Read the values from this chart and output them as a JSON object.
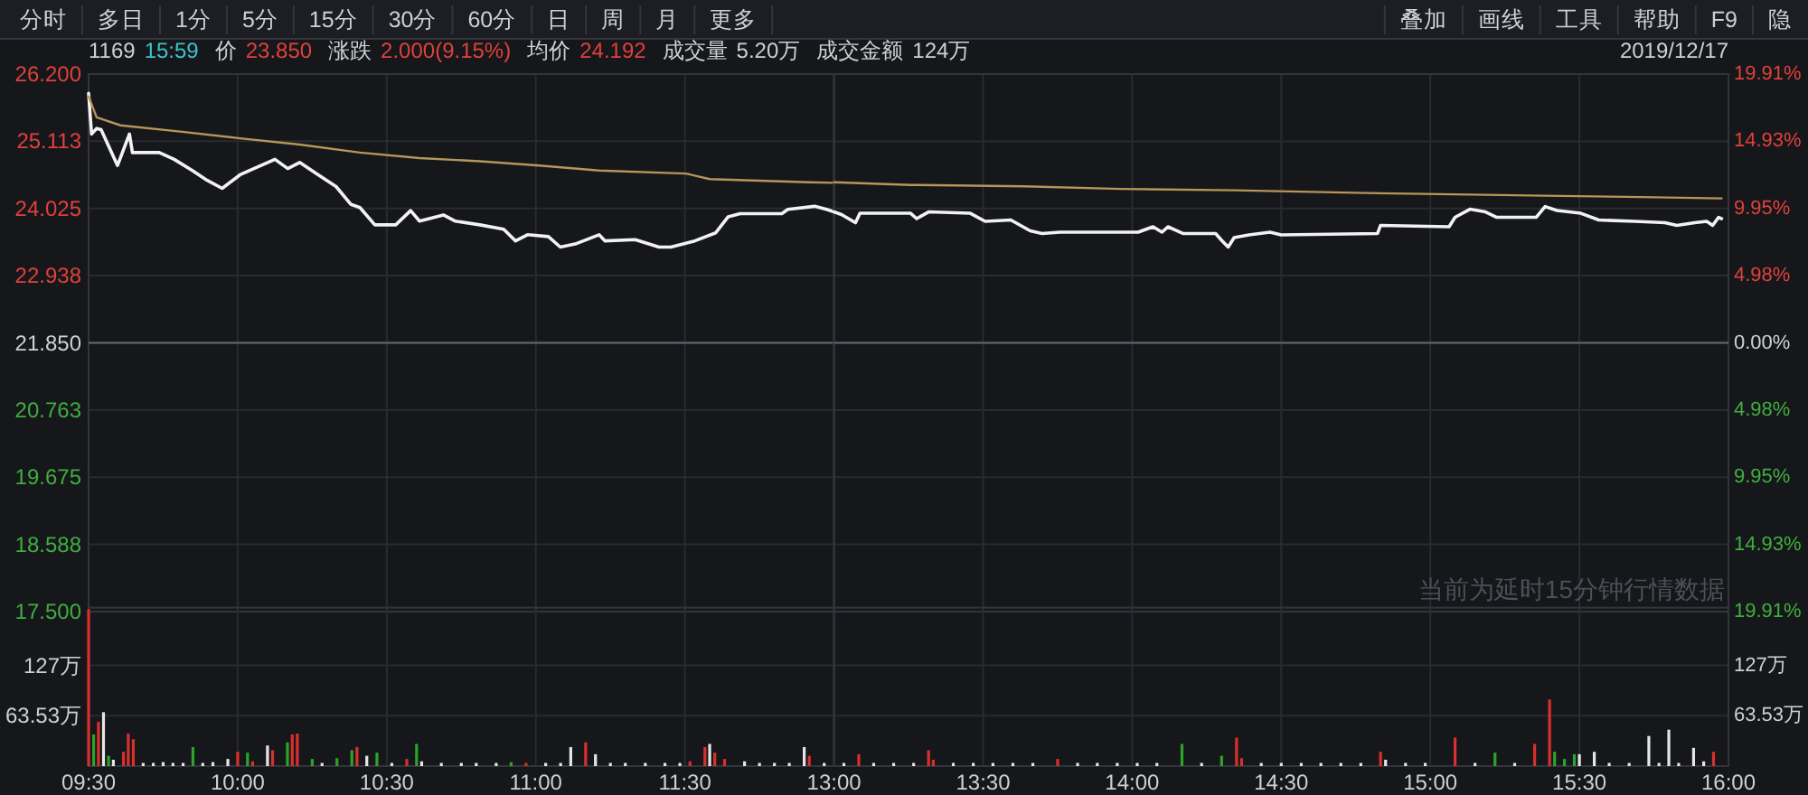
{
  "chart_data": [
    {
      "type": "other",
      "annotations": [
        "分时",
        "多日",
        "1分",
        "5分",
        "15分",
        "30分",
        "60分",
        "日",
        "周",
        "月",
        "更多",
        "叠加",
        "画线",
        "工具",
        "帮助",
        "F9",
        "隐"
      ]
    },
    {
      "type": "line",
      "annotations": [
        "1169",
        "15:59",
        "价",
        "23.850",
        "涨跌",
        "2.000(9.15%)",
        "均价",
        "24.192",
        "成交量",
        "5.20万",
        "成交金额",
        "124万"
      ],
      "xlim": [
        9.5,
        12
      ],
      "xticks": [
        9.5,
        10,
        10.5,
        11,
        11.5
      ],
      "tick_labels": "y",
      "ylim": [
        17.5,
        26.2
      ],
      "yticks": [
        {
          "value": 26.2,
          "label": "26.200"
        },
        {
          "value": 25.113,
          "label": "25.113"
        },
        {
          "value": 24.025,
          "label": "24.025"
        },
        {
          "value": 22.938,
          "label": "22.938"
        },
        {
          "value": 21.85,
          "label": "21.850"
        },
        {
          "value": 20.763,
          "label": "20.763"
        },
        {
          "value": 19.675,
          "label": "19.675"
        },
        {
          "value": 18.588,
          "label": "18.588"
        },
        {
          "value": 17.5,
          "label": "17.500"
        }
      ],
      "ref_lines": [
        {
          "axis": "y",
          "value": 21.85,
          "color": "#66686e"
        }
      ],
      "grid": true,
      "series": [
        {
          "color": "#f2f2f2",
          "x": [
            9.5,
            9.51,
            9.527,
            9.542,
            9.597,
            9.637,
            9.647,
            9.737,
            9.787,
            9.848,
            9.898,
            9.948,
            10.008,
            10.068,
            10.125,
            10.168,
            10.208,
            10.27,
            10.33,
            10.38,
            10.41,
            10.46,
            10.53,
            10.58,
            10.61,
            10.69,
            10.73,
            10.812,
            10.892,
            10.932,
            10.972,
            11.042,
            11.082,
            11.132,
            11.212,
            11.232,
            11.333,
            11.413,
            11.453,
            11.533,
            11.603,
            11.645,
            11.685,
            11.825,
            11.845,
            11.935,
            11.975,
            12
          ],
          "values": [
            25.89,
            25.23,
            25.32,
            25.3,
            24.72,
            25.23,
            24.93,
            24.93,
            24.82,
            24.64,
            24.48,
            24.35,
            24.57,
            24.7,
            24.82,
            24.67,
            24.77,
            24.57,
            24.38,
            24.09,
            24.04,
            23.76,
            23.76,
            23.99,
            23.82,
            23.92,
            23.82,
            23.76,
            23.69,
            23.5,
            23.6,
            23.57,
            23.4,
            23.45,
            23.6,
            23.5,
            23.52,
            23.4,
            23.4,
            23.5,
            23.63,
            23.89,
            23.94,
            23.94,
            24.01,
            24.06,
            24.01,
            23.97
          ]
        },
        {
          "color": "#b8955a",
          "x": [
            9.5,
            9.527,
            9.607,
            9.807,
            10.008,
            10.208,
            10.41,
            10.61,
            10.812,
            11.012,
            11.212,
            11.503,
            11.583,
            11.915,
            12
          ],
          "values": [
            25.84,
            25.5,
            25.37,
            25.27,
            25.16,
            25.06,
            24.93,
            24.84,
            24.79,
            24.72,
            24.64,
            24.59,
            24.5,
            24.45,
            24.44
          ]
        }
      ]
    },
    {
      "type": "line",
      "annotations": [
        "2019/12/17",
        "当前为延时15分钟行情数据"
      ],
      "xlim": [
        13,
        16
      ],
      "xticks": [
        13,
        13.5,
        14,
        14.5,
        15,
        15.5,
        16
      ],
      "tick_labels": "y",
      "ylim": [
        -19.91,
        19.91
      ],
      "yticks": [
        {
          "value": 19.91,
          "label": "19.91%"
        },
        {
          "value": 14.93,
          "label": "14.93%"
        },
        {
          "value": 9.95,
          "label": "9.95%"
        },
        {
          "value": 4.98,
          "label": "4.98%"
        },
        {
          "value": 0,
          "label": "0.00%"
        },
        {
          "value": -4.98,
          "label": "4.98%"
        },
        {
          "value": -9.95,
          "label": "9.95%"
        },
        {
          "value": -14.93,
          "label": "14.93%"
        },
        {
          "value": -19.91,
          "label": "19.91%"
        }
      ],
      "ref_lines": [
        {
          "axis": "y",
          "value": 0,
          "color": "#66686e"
        }
      ],
      "grid": true,
      "series": [
        {
          "color": "#f2f2f2",
          "x": [
            13,
            13.025,
            13.072,
            13.087,
            13.257,
            13.277,
            13.317,
            13.457,
            13.507,
            13.593,
            13.658,
            13.698,
            13.758,
            14.02,
            14.07,
            14.1,
            14.12,
            14.17,
            14.28,
            14.3,
            14.322,
            14.342,
            14.392,
            14.462,
            14.5,
            14.823,
            14.833,
            15.063,
            15.083,
            15.133,
            15.185,
            15.223,
            15.355,
            15.385,
            15.425,
            15.505,
            15.565,
            15.687,
            15.787,
            15.827,
            15.887,
            15.927,
            15.947,
            15.967,
            15.977
          ],
          "values": [
            9.7,
            9.5,
            8.9,
            9.6,
            9.6,
            9.2,
            9.7,
            9.6,
            9.0,
            9.1,
            8.3,
            8.1,
            8.2,
            8.2,
            8.6,
            8.2,
            8.6,
            8.1,
            8.1,
            7.6,
            7.1,
            7.8,
            8.0,
            8.2,
            8.0,
            8.1,
            8.7,
            8.6,
            9.3,
            9.9,
            9.7,
            9.3,
            9.3,
            10.1,
            9.8,
            9.6,
            9.1,
            9.0,
            8.9,
            8.7,
            8.9,
            9.0,
            8.7,
            9.3,
            9.2
          ]
        },
        {
          "color": "#b8955a",
          "x": [
            13,
            13.257,
            13.638,
            13.96,
            14.342,
            14.782,
            15.385,
            15.707,
            15.977
          ],
          "values": [
            11.9,
            11.7,
            11.6,
            11.4,
            11.3,
            11.1,
            10.9,
            10.8,
            10.7
          ]
        }
      ]
    },
    {
      "type": "bar",
      "xlim": [
        9.5,
        12
      ],
      "xticks": [
        {
          "value": 9.5,
          "label": "09:30"
        },
        {
          "value": 10,
          "label": "10:00"
        },
        {
          "value": 10.5,
          "label": "10:30"
        },
        {
          "value": 11,
          "label": "11:00"
        },
        {
          "value": 11.5,
          "label": "11:30"
        }
      ],
      "ylim": [
        0,
        200
      ],
      "yticks": [
        {
          "value": 63.53,
          "label": "63.53万"
        },
        {
          "value": 127,
          "label": "127万"
        }
      ],
      "grid": true,
      "x": [
        9.5,
        9.517,
        9.533,
        9.55,
        9.567,
        9.583,
        9.617,
        9.633,
        9.65,
        9.683,
        9.717,
        9.75,
        9.783,
        9.817,
        9.85,
        9.883,
        9.917,
        9.967,
        10,
        10.033,
        10.05,
        10.1,
        10.117,
        10.167,
        10.183,
        10.2,
        10.25,
        10.283,
        10.333,
        10.383,
        10.4,
        10.433,
        10.467,
        10.517,
        10.567,
        10.6,
        10.617,
        10.683,
        10.75,
        10.8,
        10.867,
        10.917,
        10.967,
        11.033,
        11.083,
        11.117,
        11.167,
        11.2,
        11.25,
        11.3,
        11.367,
        11.433,
        11.483,
        11.517,
        11.567,
        11.583,
        11.6,
        11.633,
        11.7,
        11.75,
        11.8,
        11.85,
        11.9,
        11.917,
        11.967
      ],
      "values": [
        198,
        40,
        56,
        68,
        13,
        8,
        18,
        41,
        34,
        4,
        4,
        5,
        4,
        4,
        24,
        4,
        5,
        9,
        18,
        17,
        6,
        26,
        20,
        30,
        40,
        41,
        9,
        4,
        10,
        20,
        24,
        13,
        17,
        4,
        9,
        28,
        6,
        4,
        4,
        4,
        4,
        5,
        4,
        4,
        4,
        24,
        30,
        15,
        4,
        4,
        4,
        4,
        4,
        6,
        24,
        28,
        17,
        9,
        6,
        4,
        4,
        4,
        24,
        13,
        4
      ],
      "colors": [
        "#d8302c",
        "#2aa52a",
        "#d8302c",
        "#e6e6e6",
        "#2aa52a",
        "#e6e6e6",
        "#d8302c",
        "#d8302c",
        "#d8302c",
        "#e6e6e6",
        "#e6e6e6",
        "#e6e6e6",
        "#e6e6e6",
        "#e6e6e6",
        "#2aa52a",
        "#e6e6e6",
        "#e6e6e6",
        "#e6e6e6",
        "#d8302c",
        "#2aa52a",
        "#d8302c",
        "#e6e6e6",
        "#d8302c",
        "#2aa52a",
        "#d8302c",
        "#d8302c",
        "#2aa52a",
        "#e6e6e6",
        "#2aa52a",
        "#2aa52a",
        "#d8302c",
        "#e6e6e6",
        "#2aa52a",
        "#e6e6e6",
        "#d8302c",
        "#2aa52a",
        "#e6e6e6",
        "#e6e6e6",
        "#e6e6e6",
        "#e6e6e6",
        "#e6e6e6",
        "#2aa52a",
        "#d8302c",
        "#e6e6e6",
        "#e6e6e6",
        "#e6e6e6",
        "#d8302c",
        "#e6e6e6",
        "#e6e6e6",
        "#e6e6e6",
        "#e6e6e6",
        "#e6e6e6",
        "#e6e6e6",
        "#d8302c",
        "#d8302c",
        "#e6e6e6",
        "#d8302c",
        "#d8302c",
        "#e6e6e6",
        "#e6e6e6",
        "#e6e6e6",
        "#e6e6e6",
        "#e6e6e6",
        "#d8302c",
        "#e6e6e6"
      ]
    },
    {
      "type": "bar",
      "xlim": [
        13,
        16
      ],
      "xticks": [
        {
          "value": 13,
          "label": "13:00"
        },
        {
          "value": 13.5,
          "label": "13:30"
        },
        {
          "value": 14,
          "label": "14:00"
        },
        {
          "value": 14.5,
          "label": "14:30"
        },
        {
          "value": 15,
          "label": "15:00"
        },
        {
          "value": 15.5,
          "label": "15:30"
        },
        {
          "value": 16,
          "label": "16:00"
        }
      ],
      "ylim": [
        0,
        200
      ],
      "yticks": [
        {
          "value": 63.53,
          "label": "63.53万"
        },
        {
          "value": 127,
          "label": "127万"
        }
      ],
      "grid": true,
      "x": [
        13.033,
        13.083,
        13.133,
        13.2,
        13.267,
        13.317,
        13.333,
        13.4,
        13.467,
        13.533,
        13.6,
        13.667,
        13.75,
        13.817,
        13.883,
        13.95,
        14.017,
        14.083,
        14.167,
        14.233,
        14.3,
        14.35,
        14.367,
        14.433,
        14.5,
        14.567,
        14.633,
        14.7,
        14.767,
        14.833,
        14.85,
        14.917,
        14.983,
        15.083,
        15.15,
        15.217,
        15.283,
        15.35,
        15.4,
        15.417,
        15.45,
        15.483,
        15.5,
        15.55,
        15.6,
        15.667,
        15.733,
        15.767,
        15.8,
        15.833,
        15.883,
        15.917,
        15.95
      ],
      "values": [
        4,
        15,
        4,
        4,
        4,
        20,
        8,
        4,
        4,
        4,
        4,
        4,
        9,
        4,
        4,
        4,
        4,
        4,
        28,
        4,
        13,
        36,
        10,
        4,
        4,
        4,
        4,
        4,
        4,
        18,
        8,
        4,
        4,
        36,
        4,
        17,
        4,
        28,
        84,
        18,
        9,
        15,
        15,
        18,
        4,
        4,
        38,
        4,
        46,
        4,
        23,
        6,
        18
      ],
      "colors": [
        "#e6e6e6",
        "#d8302c",
        "#e6e6e6",
        "#e6e6e6",
        "#e6e6e6",
        "#d8302c",
        "#d8302c",
        "#e6e6e6",
        "#e6e6e6",
        "#e6e6e6",
        "#e6e6e6",
        "#e6e6e6",
        "#d8302c",
        "#e6e6e6",
        "#e6e6e6",
        "#e6e6e6",
        "#e6e6e6",
        "#e6e6e6",
        "#2aa52a",
        "#e6e6e6",
        "#2aa52a",
        "#d8302c",
        "#d8302c",
        "#e6e6e6",
        "#e6e6e6",
        "#e6e6e6",
        "#e6e6e6",
        "#e6e6e6",
        "#e6e6e6",
        "#d8302c",
        "#e6e6e6",
        "#e6e6e6",
        "#e6e6e6",
        "#d8302c",
        "#e6e6e6",
        "#2aa52a",
        "#e6e6e6",
        "#d8302c",
        "#d8302c",
        "#2aa52a",
        "#2aa52a",
        "#2aa52a",
        "#e6e6e6",
        "#e6e6e6",
        "#e6e6e6",
        "#e6e6e6",
        "#e6e6e6",
        "#e6e6e6",
        "#e6e6e6",
        "#e6e6e6",
        "#e6e6e6",
        "#e6e6e6",
        "#d8302c"
      ]
    }
  ]
}
